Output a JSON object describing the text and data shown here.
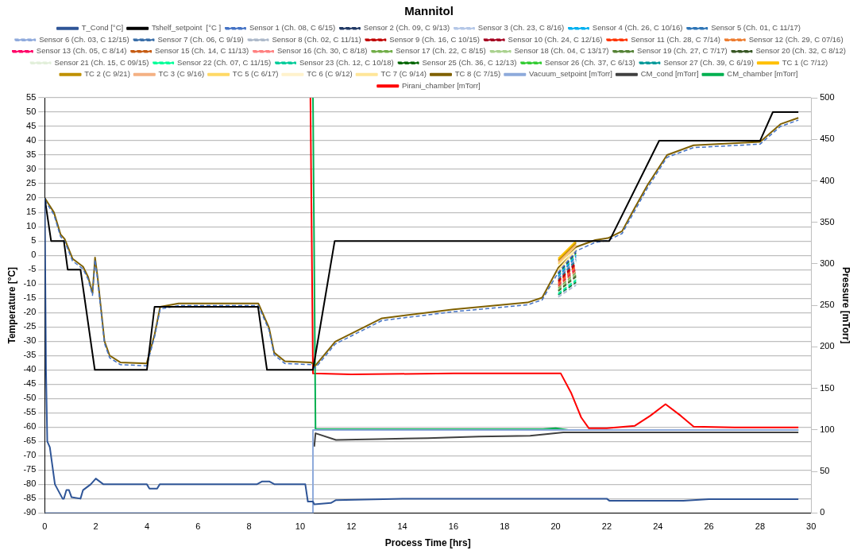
{
  "chart_data": {
    "type": "line",
    "title": "Mannitol",
    "xlabel": "Process Time [hrs]",
    "ylabel": "Temperature [°C]",
    "y2label": "Pressure [mTorr]",
    "xlim": [
      0,
      30
    ],
    "xticks": [
      0,
      2,
      4,
      6,
      8,
      10,
      12,
      14,
      16,
      18,
      20,
      22,
      24,
      26,
      28,
      30
    ],
    "ylim": [
      -90,
      55
    ],
    "yticks": [
      -90,
      -85,
      -80,
      -75,
      -70,
      -65,
      -60,
      -55,
      -50,
      -45,
      -40,
      -35,
      -30,
      -25,
      -20,
      -15,
      -10,
      -5,
      0,
      5,
      10,
      15,
      20,
      25,
      30,
      35,
      40,
      45,
      50,
      55
    ],
    "y2lim": [
      0,
      500
    ],
    "y2ticks": [
      0,
      50,
      100,
      150,
      200,
      250,
      300,
      350,
      400,
      450,
      500
    ],
    "grid": "y",
    "legend": "top",
    "marker": "none",
    "x": [
      0,
      0.36,
      0.62,
      0.78,
      1.09,
      1.5,
      1.7,
      1.87,
      1.97,
      2.07,
      2.34,
      2.54,
      2.96,
      3.99,
      4.3,
      4.52,
      5.24,
      8.36,
      8.78,
      8.98,
      9.4,
      10.43,
      10.59,
      11.37,
      13.2,
      16,
      18.9,
      19.47,
      20.1,
      20.8,
      21.55,
      22.05,
      22.6,
      23.1,
      23.6,
      24.36,
      25.4,
      28,
      28.8,
      29.5
    ],
    "series": [
      {
        "name": "T_Cond [°C]",
        "color": "#2f5597",
        "line_style": "solid",
        "x": [
          0,
          0.05,
          0.1,
          0.2,
          0.4,
          0.7,
          0.75,
          0.85,
          0.95,
          1.05,
          1.4,
          1.5,
          1.8,
          2.0,
          2.3,
          4.0,
          4.1,
          4.4,
          4.5,
          8.3,
          8.5,
          8.8,
          9.0,
          10.2,
          10.3,
          10.5,
          10.55,
          11.2,
          11.4,
          14,
          22,
          22.1,
          25,
          26,
          29.5
        ],
        "values": [
          20,
          -40,
          -65,
          -67,
          -80,
          -85,
          -85,
          -82,
          -82,
          -84.5,
          -85,
          -82,
          -80,
          -78,
          -80,
          -80,
          -81.5,
          -81.5,
          -80,
          -80,
          -79,
          -79,
          -80,
          -80,
          -86,
          -86,
          -87,
          -86.5,
          -85.5,
          -85,
          -85,
          -85.7,
          -85.7,
          -85.2,
          -85.2
        ]
      },
      {
        "name": "Tshelf_setpoint  [°C ]",
        "color": "#000000",
        "line_style": "solid",
        "x": [
          0,
          0.25,
          0.75,
          0.9,
          1.4,
          1.96,
          4.0,
          4.3,
          8.35,
          8.7,
          10.5,
          11.35,
          22.1,
          24.05,
          28.0,
          28.5,
          29.5
        ],
        "values": [
          20,
          5,
          5,
          -5,
          -5,
          -40,
          -40,
          -18,
          -18,
          -40,
          -40,
          5,
          5,
          40,
          40,
          50,
          50
        ]
      },
      {
        "name": "Sensor 1 (Ch. 08, C 6/15)",
        "color": "#4472c4",
        "line_style": "dashed",
        "values": [
          19.2,
          14.2,
          6.5,
          4.9,
          -2,
          -4.8,
          -8.4,
          -14,
          -1.6,
          -8.4,
          -30.8,
          -35.8,
          -38.2,
          -38.6,
          -28.5,
          -18.8,
          -17.6,
          -17.6,
          -26.1,
          -34.8,
          -37.8,
          -38.2,
          -39.4,
          -31,
          -22.8,
          -19.7,
          -17.3,
          -15.6,
          -6,
          1.5,
          4.5,
          5.2,
          7.6,
          15.6,
          23.6,
          34.2,
          37.6,
          38.8,
          45,
          47.2
        ]
      },
      {
        "name": "Sensor 2 (Ch. 09, C 9/13)",
        "color": "#203864",
        "line_style": "dashed",
        "x": [
          20.1,
          20.8
        ],
        "values": [
          -6.4,
          1
        ]
      },
      {
        "name": "Sensor 3 (Ch. 23, C 8/16)",
        "color": "#b4c7e7",
        "line_style": "dashed",
        "x": [
          20.1,
          20.8
        ],
        "values": [
          -14.3,
          -10
        ]
      },
      {
        "name": "Sensor 4 (Ch. 26, C 10/16)",
        "color": "#00b0f0",
        "line_style": "dashed",
        "x": [
          20.1,
          20.8
        ],
        "values": [
          -7.1,
          0
        ]
      },
      {
        "name": "Sensor 5 (Ch. 01, C 11/17)",
        "color": "#2e75b6",
        "line_style": "dashed",
        "x": [
          20.1,
          20.8
        ],
        "values": [
          -7.4,
          -0.5
        ]
      },
      {
        "name": "Sensor 6 (Ch. 03, C 12/15)",
        "color": "#8faadc",
        "line_style": "dashed",
        "x": [
          20.1,
          20.8
        ],
        "values": [
          -7.8,
          -1
        ]
      },
      {
        "name": "Sensor 7 (Ch. 06, C 9/19)",
        "color": "#3a6ea8",
        "line_style": "dashed",
        "x": [
          20.1,
          20.8
        ],
        "values": [
          -8.2,
          -1.5
        ]
      },
      {
        "name": "Sensor 8 (Ch. 02, C 11/11)",
        "color": "#adb9ca",
        "line_style": "dashed",
        "x": [
          20.1,
          20.8
        ],
        "values": [
          -14.6,
          -10.5
        ]
      },
      {
        "name": "Sensor 9 (Ch. 16, C 10/15)",
        "color": "#c00000",
        "line_style": "dashed",
        "x": [
          20.1,
          20.8
        ],
        "values": [
          -8.9,
          -2.5
        ]
      },
      {
        "name": "Sensor 10 (Ch. 24, C 12/16)",
        "color": "#a50021",
        "line_style": "dashed",
        "x": [
          20.1,
          20.8
        ],
        "values": [
          -9.2,
          -3
        ]
      },
      {
        "name": "Sensor 11 (Ch. 28, C 7/14)",
        "color": "#ff3300",
        "line_style": "dashed",
        "x": [
          20.1,
          20.8
        ],
        "values": [
          -9.6,
          -3.5
        ]
      },
      {
        "name": "Sensor 12 (Ch. 29, C 07/16)",
        "color": "#ed7d31",
        "line_style": "dashed",
        "x": [
          20.1,
          20.8
        ],
        "values": [
          -10,
          -4
        ]
      },
      {
        "name": "Sensor 13 (Ch. 05, C 8/14)",
        "color": "#ff0066",
        "line_style": "dashed",
        "x": [
          20.1,
          20.8
        ],
        "values": [
          -10.3,
          -4.5
        ]
      },
      {
        "name": "Sensor 15 (Ch. 14, C 11/13)",
        "color": "#c55a11",
        "line_style": "dashed",
        "x": [
          20.1,
          20.8
        ],
        "values": [
          -10.7,
          -5
        ]
      },
      {
        "name": "Sensor 16 (Ch. 30, C 8/18)",
        "color": "#ff8080",
        "line_style": "dashed",
        "x": [
          20.1,
          20.8
        ],
        "values": [
          -11,
          -5.5
        ]
      },
      {
        "name": "Sensor 17 (Ch. 22, C 8/15)",
        "color": "#70ad47",
        "line_style": "dashed",
        "x": [
          20.1,
          20.8
        ],
        "values": [
          -11.4,
          -6
        ]
      },
      {
        "name": "Sensor 18 (Ch. 04, C 13/17)",
        "color": "#a9d18e",
        "line_style": "dashed",
        "x": [
          20.1,
          20.8
        ],
        "values": [
          -11.8,
          -6.5
        ]
      },
      {
        "name": "Sensor 19 (Ch. 27, C 7/17)",
        "color": "#548235",
        "line_style": "dashed",
        "x": [
          20.1,
          20.8
        ],
        "values": [
          -12.1,
          -7
        ]
      },
      {
        "name": "Sensor 20 (Ch. 32, C 8/12)",
        "color": "#375623",
        "line_style": "dashed",
        "x": [
          20.1,
          20.8
        ],
        "values": [
          -12.5,
          -7.5
        ]
      },
      {
        "name": "Sensor 21 (Ch. 15, C 09/15)",
        "color": "#e2efda",
        "line_style": "dashed",
        "x": [
          20.1,
          20.8
        ],
        "values": [
          -12.8,
          -8
        ]
      },
      {
        "name": "Sensor 22 (Ch. 07, C 11/15)",
        "color": "#00ff99",
        "line_style": "dashed",
        "x": [
          20.1,
          20.8
        ],
        "values": [
          -13.2,
          -8.5
        ]
      },
      {
        "name": "Sensor 23 (Ch. 12, C 10/18)",
        "color": "#00cc99",
        "line_style": "dashed",
        "x": [
          20.1,
          20.8
        ],
        "values": [
          -13.6,
          -9
        ]
      },
      {
        "name": "Sensor 25 (Ch. 36, C 12/13)",
        "color": "#006600",
        "line_style": "dashed",
        "x": [
          20.1,
          20.8
        ],
        "values": [
          -13.9,
          -9.5
        ]
      },
      {
        "name": "Sensor 26 (Ch. 37, C 6/13)",
        "color": "#33cc33",
        "line_style": "dashed",
        "x": [
          20.1,
          20.8
        ],
        "values": [
          -6.7,
          0.5
        ]
      },
      {
        "name": "Sensor 27 (Ch. 39, C 6/19)",
        "color": "#009999",
        "line_style": "dashed",
        "x": [
          20.1,
          20.8
        ],
        "values": [
          -8.5,
          -2
        ]
      },
      {
        "name": "TC 1 (C 7/12)",
        "color": "#ffc000",
        "line_style": "solid",
        "x": [
          20.1,
          20.8
        ],
        "values": [
          -1.2,
          5
        ]
      },
      {
        "name": "TC 2 (C 9/21)",
        "color": "#bf9000",
        "line_style": "solid",
        "x": [
          20.1,
          20.8
        ],
        "values": [
          -1.8,
          4.4
        ]
      },
      {
        "name": "TC 3 (C 9/16)",
        "color": "#f4b183",
        "line_style": "solid",
        "x": [
          20.1,
          20.8
        ],
        "values": [
          -2.4,
          3.8
        ]
      },
      {
        "name": "TC 5 (C 6/17)",
        "color": "#ffd966",
        "line_style": "solid",
        "x": [
          20.1,
          20.8
        ],
        "values": [
          -3,
          3.4
        ]
      },
      {
        "name": "TC 6 (C 9/12)",
        "color": "#fff2cc",
        "line_style": "solid",
        "x": [
          20.1,
          20.8
        ],
        "values": [
          -3.6,
          2.3
        ]
      },
      {
        "name": "TC 7 (C 9/14)",
        "color": "#ffe699",
        "line_style": "solid",
        "x": [
          20.1,
          20.8
        ],
        "values": [
          -5.2,
          2
        ]
      },
      {
        "name": "TC 8 (C 7/15)",
        "color": "#7f6000",
        "line_style": "solid",
        "values": [
          20,
          15,
          7.3,
          5.7,
          -1.2,
          -4,
          -7.6,
          -13.2,
          -0.8,
          -7.6,
          -30,
          -35,
          -37.4,
          -37.8,
          -27.7,
          -18,
          -16.8,
          -16.8,
          -25.3,
          -34,
          -37,
          -37.4,
          -38.6,
          -30.2,
          -22,
          -18.9,
          -16.5,
          -14.8,
          -4.4,
          2.9,
          5.3,
          6,
          8.4,
          16.6,
          24.6,
          35,
          38.4,
          39.6,
          45.8,
          48
        ]
      },
      {
        "name": "Vacuum_setpoint [mTorr]",
        "color": "#8eaadb",
        "line_style": "solid",
        "axis": "y2",
        "x": [
          0,
          10.5,
          10.5,
          29.5
        ],
        "values": [
          0,
          0,
          100,
          100
        ]
      },
      {
        "name": "CM_cond [mTorr]",
        "color": "#404040",
        "line_style": "solid",
        "axis": "y2",
        "x": [
          10.55,
          10.6,
          11.4,
          13,
          15,
          17,
          19,
          20.3,
          22,
          25,
          29.5
        ],
        "values": [
          80,
          96,
          88,
          89,
          90,
          92,
          93,
          97,
          97,
          97,
          97
        ]
      },
      {
        "name": "CM_chamber [mTorr]",
        "color": "#00b050",
        "line_style": "solid",
        "axis": "y2",
        "x": [
          10.5,
          10.6,
          14,
          19.5,
          20,
          20.5,
          25,
          29.5
        ],
        "values": [
          500,
          101,
          101,
          101,
          102,
          100,
          100,
          100
        ]
      },
      {
        "name": "Pirani_chamber [mTorr]",
        "color": "#ff0000",
        "line_style": "solid",
        "axis": "y2",
        "x": [
          10.4,
          10.5,
          12,
          16,
          20.2,
          20.6,
          21.0,
          21.3,
          22,
          23.1,
          23.7,
          24.3,
          24.9,
          25.4,
          27,
          29.5
        ],
        "values": [
          500,
          168,
          167,
          168,
          168,
          145,
          115,
          102,
          102,
          105,
          117,
          131,
          117,
          104,
          103,
          103
        ]
      }
    ]
  }
}
